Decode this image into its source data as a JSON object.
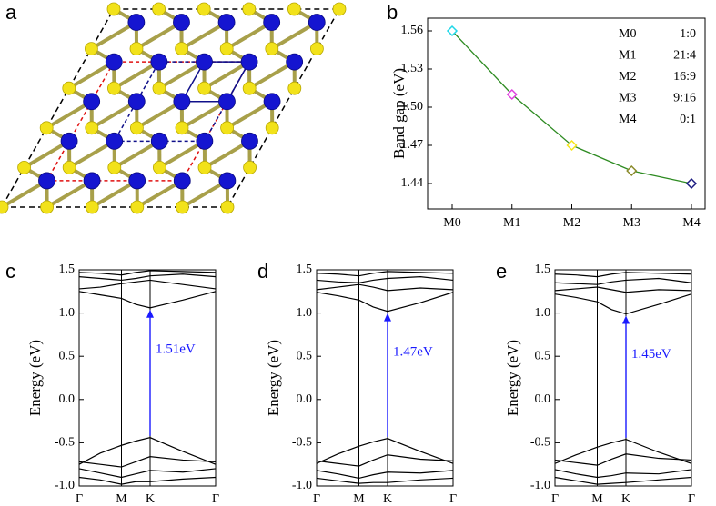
{
  "structure_panel": {
    "label": "a"
  },
  "chart_data": [
    {
      "type": "line",
      "panel_label": "b",
      "ylabel": "Band gap (eV)",
      "categories": [
        "M0",
        "M1",
        "M2",
        "M3",
        "M4"
      ],
      "series": [
        {
          "color": "#2e8b22",
          "values": [
            1.56,
            1.51,
            1.47,
            1.45,
            1.44
          ],
          "marker_colors": [
            "#1fd7e8",
            "#e040e0",
            "#f5e61a",
            "#8a8a2a",
            "#1a1a80"
          ]
        }
      ],
      "ylim": [
        1.42,
        1.57
      ],
      "yticks": [
        1.44,
        1.47,
        {
          "value": 1.5,
          "label": "1.50"
        },
        1.53,
        1.56
      ],
      "annotations": [
        {
          "name": "M0",
          "ratio": "1:0"
        },
        {
          "name": "M1",
          "ratio": "21:4"
        },
        {
          "name": "M2",
          "ratio": "16:9"
        },
        {
          "name": "M3",
          "ratio": "9:16"
        },
        {
          "name": "M4",
          "ratio": "0:1"
        }
      ]
    },
    {
      "type": "bands",
      "panel_label": "c",
      "ylabel": "Energy (eV)",
      "x": [
        0,
        0.155,
        0.31,
        0.415,
        0.52,
        0.76,
        1
      ],
      "xlim": [
        0,
        1
      ],
      "xticks": [
        {
          "value": 0,
          "label": "Γ"
        },
        {
          "value": 0.31,
          "label": "M"
        },
        {
          "value": 0.52,
          "label": "K"
        },
        {
          "value": 1,
          "label": "Γ"
        }
      ],
      "ylim": [
        -1.0,
        1.5
      ],
      "yticks": [
        {
          "value": -1,
          "label": "-1.0"
        },
        -0.5,
        {
          "value": 0,
          "label": "0.0"
        },
        0.5,
        {
          "value": 1,
          "label": "1.0"
        },
        1.5
      ],
      "series": [
        {
          "color": "#000000",
          "values": [
            1.25,
            1.21,
            1.17,
            1.1,
            1.06,
            1.15,
            1.25
          ]
        },
        {
          "color": "#000000",
          "values": [
            1.28,
            1.3,
            1.34,
            1.36,
            1.38,
            1.33,
            1.28
          ]
        },
        {
          "color": "#000000",
          "values": [
            1.42,
            1.4,
            1.38,
            1.4,
            1.43,
            1.45,
            1.42
          ]
        },
        {
          "color": "#000000",
          "values": [
            1.47,
            1.46,
            1.44,
            1.47,
            1.49,
            1.48,
            1.47
          ]
        },
        {
          "color": "#000000",
          "values": [
            -0.75,
            -0.62,
            -0.53,
            -0.48,
            -0.44,
            -0.6,
            -0.75
          ]
        },
        {
          "color": "#000000",
          "values": [
            -0.72,
            -0.75,
            -0.78,
            -0.72,
            -0.66,
            -0.7,
            -0.72
          ]
        },
        {
          "color": "#000000",
          "values": [
            -0.8,
            -0.85,
            -0.9,
            -0.86,
            -0.82,
            -0.84,
            -0.8
          ]
        },
        {
          "color": "#000000",
          "values": [
            -0.9,
            -0.93,
            -0.98,
            -0.95,
            -0.95,
            -0.92,
            -0.9
          ]
        }
      ],
      "arrow": {
        "x": 0.52,
        "from": -0.42,
        "to": 1.04,
        "label": "1.51eV",
        "color": "#1a1aff"
      }
    },
    {
      "type": "bands",
      "panel_label": "d",
      "ylabel": "Energy (eV)",
      "x": [
        0,
        0.155,
        0.31,
        0.415,
        0.52,
        0.76,
        1
      ],
      "xlim": [
        0,
        1
      ],
      "xticks": [
        {
          "value": 0,
          "label": "Γ"
        },
        {
          "value": 0.31,
          "label": "M"
        },
        {
          "value": 0.52,
          "label": "K"
        },
        {
          "value": 1,
          "label": "Γ"
        }
      ],
      "ylim": [
        -1.0,
        1.5
      ],
      "yticks": [
        {
          "value": -1,
          "label": "-1.0"
        },
        -0.5,
        {
          "value": 0,
          "label": "0.0"
        },
        0.5,
        {
          "value": 1,
          "label": "1.0"
        },
        1.5
      ],
      "series": [
        {
          "color": "#000000",
          "values": [
            1.24,
            1.2,
            1.15,
            1.07,
            1.02,
            1.12,
            1.24
          ]
        },
        {
          "color": "#000000",
          "values": [
            1.27,
            1.3,
            1.33,
            1.3,
            1.26,
            1.29,
            1.27
          ]
        },
        {
          "color": "#000000",
          "values": [
            1.38,
            1.36,
            1.35,
            1.38,
            1.4,
            1.42,
            1.38
          ]
        },
        {
          "color": "#000000",
          "values": [
            1.46,
            1.45,
            1.43,
            1.46,
            1.48,
            1.47,
            1.46
          ]
        },
        {
          "color": "#000000",
          "values": [
            -0.74,
            -0.63,
            -0.54,
            -0.49,
            -0.45,
            -0.6,
            -0.74
          ]
        },
        {
          "color": "#000000",
          "values": [
            -0.71,
            -0.74,
            -0.77,
            -0.7,
            -0.64,
            -0.69,
            -0.71
          ]
        },
        {
          "color": "#000000",
          "values": [
            -0.82,
            -0.86,
            -0.91,
            -0.87,
            -0.84,
            -0.85,
            -0.82
          ]
        },
        {
          "color": "#000000",
          "values": [
            -0.91,
            -0.94,
            -0.97,
            -0.96,
            -0.96,
            -0.93,
            -0.91
          ]
        }
      ],
      "arrow": {
        "x": 0.52,
        "from": -0.43,
        "to": 1.0,
        "label": "1.47eV",
        "color": "#1a1aff"
      }
    },
    {
      "type": "bands",
      "panel_label": "e",
      "ylabel": "Energy (eV)",
      "x": [
        0,
        0.155,
        0.31,
        0.415,
        0.52,
        0.76,
        1
      ],
      "xlim": [
        0,
        1
      ],
      "xticks": [
        {
          "value": 0,
          "label": "Γ"
        },
        {
          "value": 0.31,
          "label": "M"
        },
        {
          "value": 0.52,
          "label": "K"
        },
        {
          "value": 1,
          "label": "Γ"
        }
      ],
      "ylim": [
        -1.0,
        1.5
      ],
      "yticks": [
        {
          "value": -1,
          "label": "-1.0"
        },
        -0.5,
        {
          "value": 0,
          "label": "0.0"
        },
        0.5,
        {
          "value": 1,
          "label": "1.0"
        },
        1.5
      ],
      "series": [
        {
          "color": "#000000",
          "values": [
            1.22,
            1.18,
            1.13,
            1.04,
            0.99,
            1.1,
            1.22
          ]
        },
        {
          "color": "#000000",
          "values": [
            1.26,
            1.28,
            1.3,
            1.27,
            1.24,
            1.27,
            1.26
          ]
        },
        {
          "color": "#000000",
          "values": [
            1.35,
            1.34,
            1.33,
            1.36,
            1.38,
            1.4,
            1.35
          ]
        },
        {
          "color": "#000000",
          "values": [
            1.45,
            1.44,
            1.42,
            1.45,
            1.47,
            1.46,
            1.45
          ]
        },
        {
          "color": "#000000",
          "values": [
            -0.74,
            -0.64,
            -0.55,
            -0.5,
            -0.46,
            -0.61,
            -0.74
          ]
        },
        {
          "color": "#000000",
          "values": [
            -0.7,
            -0.73,
            -0.76,
            -0.69,
            -0.63,
            -0.68,
            -0.7
          ]
        },
        {
          "color": "#000000",
          "values": [
            -0.81,
            -0.86,
            -0.9,
            -0.88,
            -0.85,
            -0.86,
            -0.81
          ]
        },
        {
          "color": "#000000",
          "values": [
            -0.9,
            -0.94,
            -0.98,
            -0.97,
            -0.96,
            -0.93,
            -0.9
          ]
        }
      ],
      "arrow": {
        "x": 0.52,
        "from": -0.44,
        "to": 0.97,
        "label": "1.45eV",
        "color": "#1a1aff"
      }
    }
  ]
}
